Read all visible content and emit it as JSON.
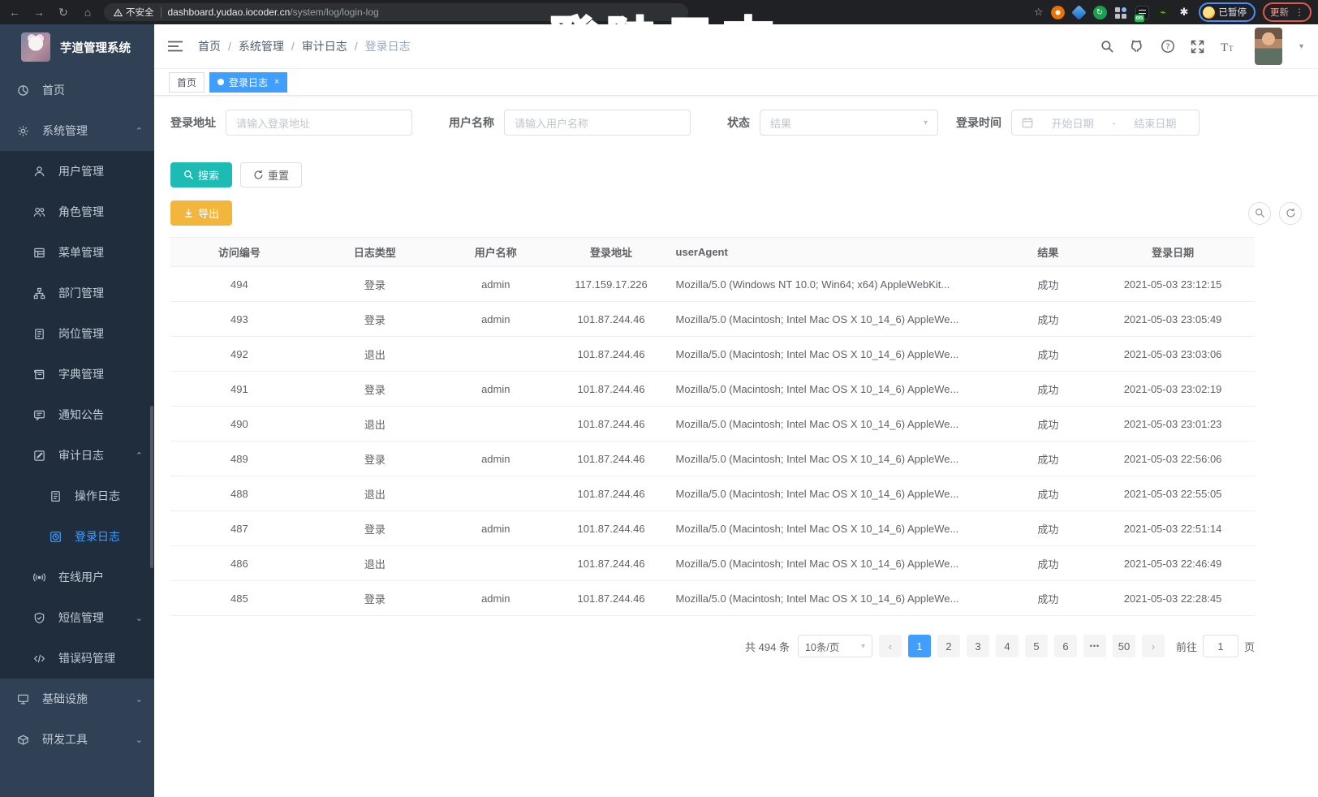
{
  "colors": {
    "accent": "#409eff",
    "search_btn": "#1cbbb4",
    "export_btn": "#f2b63c",
    "sidebar_bg": "#304156",
    "submenu_bg": "#1f2d3d",
    "annotation": "#f23a6d"
  },
  "browser": {
    "security_label": "不安全",
    "url_host": "dashboard.yudao.iocoder.cn",
    "url_path": "/system/log/login-log",
    "paused_badge": "已暂停",
    "update_button": "更新",
    "extension_on_badge": "on"
  },
  "annotation": {
    "text": "登陆日志"
  },
  "sidebar": {
    "title": "芋道管理系统",
    "menu": [
      {
        "id": "home",
        "label": "首页",
        "icon": "dashboard",
        "level": 1
      },
      {
        "id": "system",
        "label": "系统管理",
        "icon": "gear",
        "level": 1,
        "arrow": "up"
      },
      {
        "id": "user",
        "label": "用户管理",
        "icon": "user",
        "level": 2
      },
      {
        "id": "role",
        "label": "角色管理",
        "icon": "peoples",
        "level": 2
      },
      {
        "id": "menu",
        "label": "菜单管理",
        "icon": "treetable",
        "level": 2
      },
      {
        "id": "dept",
        "label": "部门管理",
        "icon": "tree",
        "level": 2
      },
      {
        "id": "post",
        "label": "岗位管理",
        "icon": "post",
        "level": 2
      },
      {
        "id": "dict",
        "label": "字典管理",
        "icon": "dict",
        "level": 2
      },
      {
        "id": "notice",
        "label": "通知公告",
        "icon": "message",
        "level": 2
      },
      {
        "id": "audit-log",
        "label": "审计日志",
        "icon": "log",
        "level": 2,
        "arrow": "up"
      },
      {
        "id": "operate-log",
        "label": "操作日志",
        "icon": "form",
        "level": 3
      },
      {
        "id": "login-log",
        "label": "登录日志",
        "icon": "logininfor",
        "level": 3,
        "active": true
      },
      {
        "id": "online-user",
        "label": "在线用户",
        "icon": "online",
        "level": 2
      },
      {
        "id": "sms",
        "label": "短信管理",
        "icon": "shield",
        "level": 2,
        "arrow": "down"
      },
      {
        "id": "error-code",
        "label": "错误码管理",
        "icon": "code",
        "level": 2
      },
      {
        "id": "infra",
        "label": "基础设施",
        "icon": "monitor",
        "level": 1,
        "arrow": "down"
      },
      {
        "id": "dev-tools",
        "label": "研发工具",
        "icon": "build",
        "level": 1,
        "arrow": "down"
      }
    ]
  },
  "header": {
    "breadcrumb": [
      "首页",
      "系统管理",
      "审计日志",
      "登录日志"
    ]
  },
  "tags": [
    {
      "label": "首页",
      "active": false,
      "closable": false
    },
    {
      "label": "登录日志",
      "active": true,
      "closable": true
    }
  ],
  "filters": {
    "address_label": "登录地址",
    "address_placeholder": "请输入登录地址",
    "username_label": "用户名称",
    "username_placeholder": "请输入用户名称",
    "status_label": "状态",
    "status_placeholder": "结果",
    "time_label": "登录时间",
    "start_placeholder": "开始日期",
    "range_separator": "-",
    "end_placeholder": "结束日期",
    "search_button": "搜索",
    "reset_button": "重置",
    "export_button": "导出"
  },
  "table": {
    "columns": [
      "访问编号",
      "日志类型",
      "用户名称",
      "登录地址",
      "userAgent",
      "结果",
      "登录日期"
    ],
    "rows": [
      [
        "494",
        "登录",
        "admin",
        "117.159.17.226",
        "Mozilla/5.0 (Windows NT 10.0; Win64; x64) AppleWebKit...",
        "成功",
        "2021-05-03 23:12:15"
      ],
      [
        "493",
        "登录",
        "admin",
        "101.87.244.46",
        "Mozilla/5.0 (Macintosh; Intel Mac OS X 10_14_6) AppleWe...",
        "成功",
        "2021-05-03 23:05:49"
      ],
      [
        "492",
        "退出",
        "",
        "101.87.244.46",
        "Mozilla/5.0 (Macintosh; Intel Mac OS X 10_14_6) AppleWe...",
        "成功",
        "2021-05-03 23:03:06"
      ],
      [
        "491",
        "登录",
        "admin",
        "101.87.244.46",
        "Mozilla/5.0 (Macintosh; Intel Mac OS X 10_14_6) AppleWe...",
        "成功",
        "2021-05-03 23:02:19"
      ],
      [
        "490",
        "退出",
        "",
        "101.87.244.46",
        "Mozilla/5.0 (Macintosh; Intel Mac OS X 10_14_6) AppleWe...",
        "成功",
        "2021-05-03 23:01:23"
      ],
      [
        "489",
        "登录",
        "admin",
        "101.87.244.46",
        "Mozilla/5.0 (Macintosh; Intel Mac OS X 10_14_6) AppleWe...",
        "成功",
        "2021-05-03 22:56:06"
      ],
      [
        "488",
        "退出",
        "",
        "101.87.244.46",
        "Mozilla/5.0 (Macintosh; Intel Mac OS X 10_14_6) AppleWe...",
        "成功",
        "2021-05-03 22:55:05"
      ],
      [
        "487",
        "登录",
        "admin",
        "101.87.244.46",
        "Mozilla/5.0 (Macintosh; Intel Mac OS X 10_14_6) AppleWe...",
        "成功",
        "2021-05-03 22:51:14"
      ],
      [
        "486",
        "退出",
        "",
        "101.87.244.46",
        "Mozilla/5.0 (Macintosh; Intel Mac OS X 10_14_6) AppleWe...",
        "成功",
        "2021-05-03 22:46:49"
      ],
      [
        "485",
        "登录",
        "admin",
        "101.87.244.46",
        "Mozilla/5.0 (Macintosh; Intel Mac OS X 10_14_6) AppleWe...",
        "成功",
        "2021-05-03 22:28:45"
      ]
    ]
  },
  "pagination": {
    "total_text": "共 494 条",
    "page_size": "10条/页",
    "pages": [
      "1",
      "2",
      "3",
      "4",
      "5",
      "6",
      "•••",
      "50"
    ],
    "active_page": "1",
    "goto_label": "前往",
    "goto_value": "1",
    "page_suffix": "页"
  }
}
